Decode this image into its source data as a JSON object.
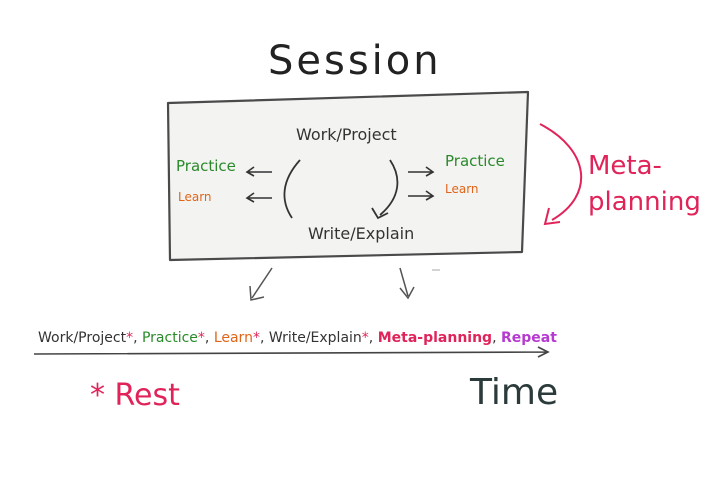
{
  "diagram": {
    "title": "Session",
    "box": {
      "top_label": "Work/Project",
      "bottom_label": "Write/Explain",
      "left": {
        "practice": "Practice",
        "learn": "Learn"
      },
      "right": {
        "practice": "Practice",
        "learn": "Learn"
      }
    },
    "side_note": "Meta-planning",
    "timeline": {
      "items": [
        {
          "label": "Work/Project",
          "color": "#333333",
          "asterisk": true
        },
        {
          "label": "Practice",
          "color": "#2a8a2a",
          "asterisk": true
        },
        {
          "label": "Learn",
          "color": "#e0651a",
          "asterisk": true
        },
        {
          "label": "Write/Explain",
          "color": "#333333",
          "asterisk": true
        },
        {
          "label": "Meta-planning",
          "color": "#e0245a",
          "asterisk": false
        },
        {
          "label": "Repeat",
          "color": "#b63ad0",
          "asterisk": false
        }
      ],
      "axis_label": "Time"
    },
    "footnote": "* Rest",
    "colors": {
      "ink": "#333333",
      "practice": "#2a8a2a",
      "learn": "#e0651a",
      "meta": "#e0245a",
      "repeat": "#b63ad0"
    }
  }
}
